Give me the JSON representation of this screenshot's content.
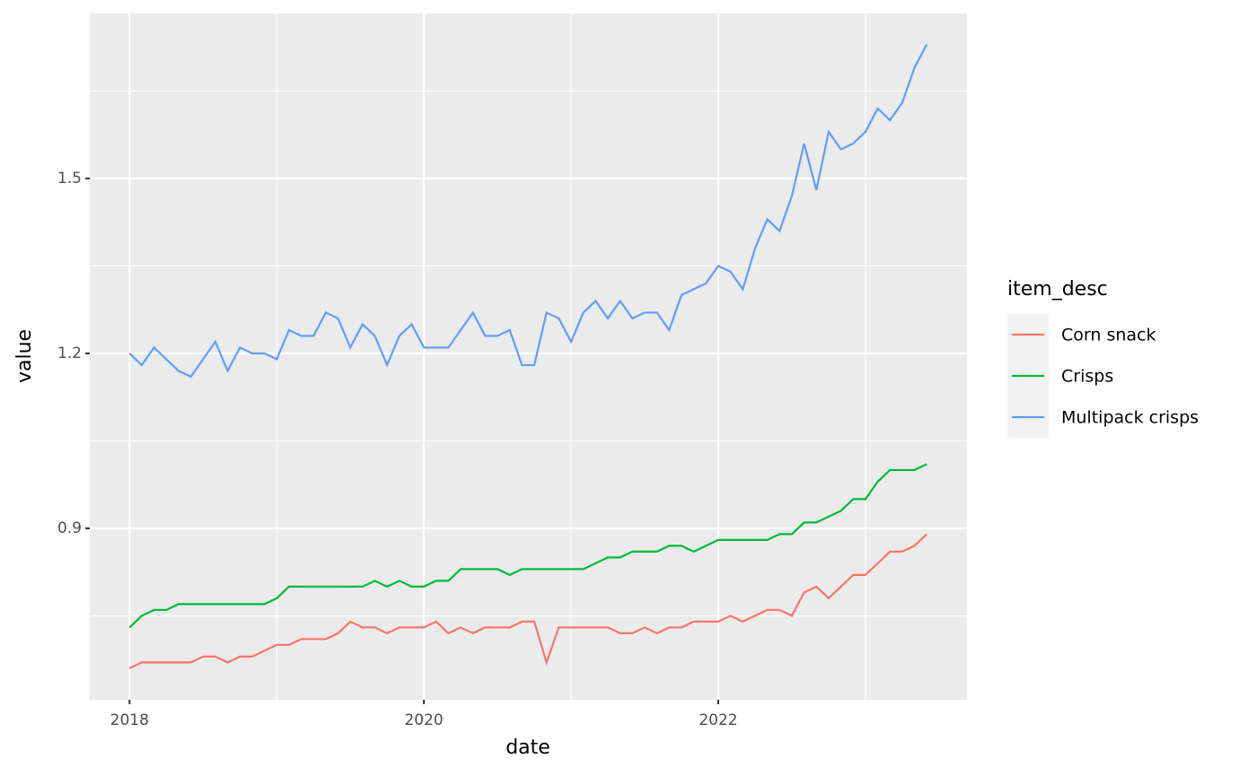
{
  "chart_data": {
    "type": "line",
    "x_label": "date",
    "y_label": "value",
    "legend_title": "item_desc",
    "legend_position": "right",
    "grid": true,
    "xlim": [
      2017.73,
      2023.69
    ],
    "xticks": [
      2018,
      2020,
      2022
    ],
    "ylim": [
      0.606,
      1.783
    ],
    "yticks": [
      0.9,
      1.2,
      1.5
    ],
    "x": [
      "2018-01",
      "2018-02",
      "2018-03",
      "2018-04",
      "2018-05",
      "2018-06",
      "2018-07",
      "2018-08",
      "2018-09",
      "2018-10",
      "2018-11",
      "2018-12",
      "2019-01",
      "2019-02",
      "2019-03",
      "2019-04",
      "2019-05",
      "2019-06",
      "2019-07",
      "2019-08",
      "2019-09",
      "2019-10",
      "2019-11",
      "2019-12",
      "2020-01",
      "2020-02",
      "2020-03",
      "2020-04",
      "2020-05",
      "2020-06",
      "2020-07",
      "2020-08",
      "2020-09",
      "2020-10",
      "2020-11",
      "2020-12",
      "2021-01",
      "2021-02",
      "2021-03",
      "2021-04",
      "2021-05",
      "2021-06",
      "2021-07",
      "2021-08",
      "2021-09",
      "2021-10",
      "2021-11",
      "2021-12",
      "2022-01",
      "2022-02",
      "2022-03",
      "2022-04",
      "2022-05",
      "2022-06",
      "2022-07",
      "2022-08",
      "2022-09",
      "2022-10",
      "2022-11",
      "2022-12",
      "2023-01",
      "2023-02",
      "2023-03",
      "2023-04",
      "2023-05",
      "2023-06"
    ],
    "series": [
      {
        "name": "Corn snack",
        "color": "#f8766d",
        "values": [
          0.66,
          0.67,
          0.67,
          0.67,
          0.67,
          0.67,
          0.68,
          0.68,
          0.67,
          0.68,
          0.68,
          0.69,
          0.7,
          0.7,
          0.71,
          0.71,
          0.71,
          0.72,
          0.74,
          0.73,
          0.73,
          0.72,
          0.73,
          0.73,
          0.73,
          0.74,
          0.72,
          0.73,
          0.72,
          0.73,
          0.73,
          0.73,
          0.74,
          0.74,
          0.67,
          0.73,
          0.73,
          0.73,
          0.73,
          0.73,
          0.72,
          0.72,
          0.73,
          0.72,
          0.73,
          0.73,
          0.74,
          0.74,
          0.74,
          0.75,
          0.74,
          0.75,
          0.76,
          0.76,
          0.75,
          0.79,
          0.8,
          0.78,
          0.8,
          0.82,
          0.82,
          0.84,
          0.86,
          0.86,
          0.87,
          0.89
        ]
      },
      {
        "name": "Crisps",
        "color": "#00ba38",
        "values": [
          0.73,
          0.75,
          0.76,
          0.76,
          0.77,
          0.77,
          0.77,
          0.77,
          0.77,
          0.77,
          0.77,
          0.77,
          0.78,
          0.8,
          0.8,
          0.8,
          0.8,
          0.8,
          0.8,
          0.8,
          0.81,
          0.8,
          0.81,
          0.8,
          0.8,
          0.81,
          0.81,
          0.83,
          0.83,
          0.83,
          0.83,
          0.82,
          0.83,
          0.83,
          0.83,
          0.83,
          0.83,
          0.83,
          0.84,
          0.85,
          0.85,
          0.86,
          0.86,
          0.86,
          0.87,
          0.87,
          0.86,
          0.87,
          0.88,
          0.88,
          0.88,
          0.88,
          0.88,
          0.89,
          0.89,
          0.91,
          0.91,
          0.92,
          0.93,
          0.95,
          0.95,
          0.98,
          1.0,
          1.0,
          1.0,
          1.01
        ]
      },
      {
        "name": "Multipack crisps",
        "color": "#619cff",
        "values": [
          1.2,
          1.18,
          1.21,
          1.19,
          1.17,
          1.16,
          1.19,
          1.22,
          1.17,
          1.21,
          1.2,
          1.2,
          1.19,
          1.24,
          1.23,
          1.23,
          1.27,
          1.26,
          1.21,
          1.25,
          1.23,
          1.18,
          1.23,
          1.25,
          1.21,
          1.21,
          1.21,
          1.24,
          1.27,
          1.23,
          1.23,
          1.24,
          1.18,
          1.18,
          1.27,
          1.26,
          1.22,
          1.27,
          1.29,
          1.26,
          1.29,
          1.26,
          1.27,
          1.27,
          1.24,
          1.3,
          1.31,
          1.32,
          1.35,
          1.34,
          1.31,
          1.38,
          1.43,
          1.41,
          1.47,
          1.56,
          1.48,
          1.58,
          1.55,
          1.56,
          1.58,
          1.62,
          1.6,
          1.63,
          1.69,
          1.73
        ]
      }
    ]
  }
}
